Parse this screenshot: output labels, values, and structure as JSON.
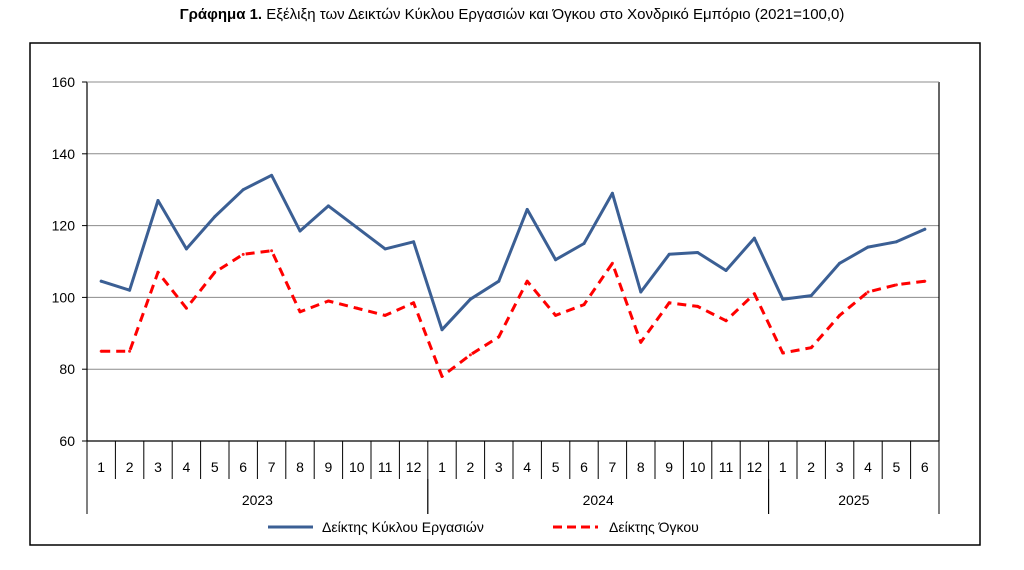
{
  "title": {
    "bold": "Γράφημα 1.",
    "rest": " Εξέλιξη των Δεικτών Κύκλου Εργασιών και Όγκου στο Χονδρικό Εμπόριο (2021=100,0)"
  },
  "chart_data": {
    "type": "line",
    "ylim": [
      60,
      160
    ],
    "yticks": [
      60,
      80,
      100,
      120,
      140,
      160
    ],
    "grid": true,
    "legend_position": "bottom",
    "x_months": [
      "1",
      "2",
      "3",
      "4",
      "5",
      "6",
      "7",
      "8",
      "9",
      "10",
      "11",
      "12",
      "1",
      "2",
      "3",
      "4",
      "5",
      "6",
      "7",
      "8",
      "9",
      "10",
      "11",
      "12",
      "1",
      "2",
      "3",
      "4",
      "5",
      "6"
    ],
    "year_groups": [
      {
        "label": "2023",
        "start": 0,
        "count": 12
      },
      {
        "label": "2024",
        "start": 12,
        "count": 12
      },
      {
        "label": "2025",
        "start": 24,
        "count": 6
      }
    ],
    "series": [
      {
        "name": "Δείκτης Κύκλου Εργασιών",
        "color": "#3b5f94",
        "style": "solid",
        "values": [
          104.5,
          102,
          127,
          113.5,
          122.5,
          130,
          134,
          118.5,
          125.5,
          119.5,
          113.5,
          115.5,
          91,
          99.5,
          104.5,
          124.5,
          110.5,
          115,
          129,
          101.5,
          112,
          112.5,
          107.5,
          116.5,
          99.5,
          100.5,
          109.5,
          114,
          115.5,
          119
        ]
      },
      {
        "name": "Δείκτης Όγκου",
        "color": "#ff0000",
        "style": "dashed",
        "values": [
          85,
          85,
          107,
          97,
          107,
          112,
          113,
          96,
          99,
          97,
          95,
          98.5,
          78,
          84,
          89,
          104.5,
          95,
          98,
          109.5,
          87.5,
          98.5,
          97.5,
          93.5,
          101,
          84.5,
          86,
          95,
          101.5,
          103.5,
          104.5
        ]
      }
    ]
  }
}
